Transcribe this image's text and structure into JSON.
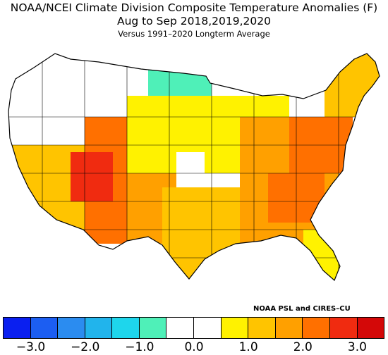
{
  "title": {
    "line1": "NOAA/NCEI Climate Division Composite Temperature Anomalies (F)",
    "line2": "Aug to Sep  2018,2019,2020",
    "line3": "Versus 1991–2020 Longterm Average"
  },
  "credit": "NOAA PSL and CIRES–CU",
  "legend": {
    "bins": [
      {
        "from": -3.5,
        "to": -3.0,
        "color": "#0a1ff0"
      },
      {
        "from": -3.0,
        "to": -2.5,
        "color": "#1c5ef2"
      },
      {
        "from": -2.5,
        "to": -2.0,
        "color": "#2b8cf0"
      },
      {
        "from": -2.0,
        "to": -1.5,
        "color": "#21b4ec"
      },
      {
        "from": -1.5,
        "to": -1.0,
        "color": "#1ed6ec"
      },
      {
        "from": -1.0,
        "to": -0.5,
        "color": "#4ff0b8"
      },
      {
        "from": -0.5,
        "to": 0.0,
        "color": "#ffffff"
      },
      {
        "from": 0.0,
        "to": 0.5,
        "color": "#ffffff"
      },
      {
        "from": 0.5,
        "to": 1.0,
        "color": "#fff200"
      },
      {
        "from": 1.0,
        "to": 1.5,
        "color": "#ffc400"
      },
      {
        "from": 1.5,
        "to": 2.0,
        "color": "#ffa000"
      },
      {
        "from": 2.0,
        "to": 2.5,
        "color": "#ff7000"
      },
      {
        "from": 2.5,
        "to": 3.0,
        "color": "#f02b10"
      },
      {
        "from": 3.0,
        "to": 3.5,
        "color": "#d40808"
      }
    ],
    "ticks": [
      "−3.0",
      "−2.0",
      "−1.0",
      "0.0",
      "1.0",
      "2.0",
      "3.0"
    ]
  },
  "map": {
    "outline_color": "#000000",
    "regions": [
      {
        "name": "pacific-northwest",
        "color": "#ffffff"
      },
      {
        "name": "northern-rockies",
        "color": "#ffffff"
      },
      {
        "name": "north-dakota-minnesota",
        "color": "#4ff0b8"
      },
      {
        "name": "upper-midwest",
        "color": "#ffffff"
      },
      {
        "name": "central-plains",
        "color": "#fff200"
      },
      {
        "name": "central-white-patch",
        "color": "#ffffff"
      },
      {
        "name": "california-great-basin",
        "color": "#ffc400"
      },
      {
        "name": "four-corners",
        "color": "#ff7000"
      },
      {
        "name": "utah-core",
        "color": "#f02b10"
      },
      {
        "name": "southwest",
        "color": "#ffa000"
      },
      {
        "name": "texas-lower-plains",
        "color": "#ffc400"
      },
      {
        "name": "mississippi-valley",
        "color": "#ffa000"
      },
      {
        "name": "southeast",
        "color": "#ffa000"
      },
      {
        "name": "appalachians",
        "color": "#ff7000"
      },
      {
        "name": "mid-atlantic",
        "color": "#ff7000"
      },
      {
        "name": "new-england",
        "color": "#ffc400"
      },
      {
        "name": "florida-gulf",
        "color": "#fff200"
      }
    ]
  }
}
